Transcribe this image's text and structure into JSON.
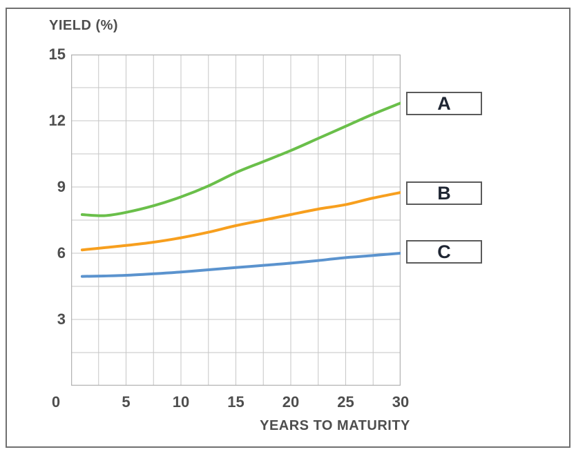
{
  "figure": {
    "y_axis_title": "YIELD (%)",
    "x_axis_title": "YEARS TO MATURITY"
  },
  "legend": {
    "items": [
      {
        "label": "A"
      },
      {
        "label": "B"
      },
      {
        "label": "C"
      }
    ]
  },
  "colors": {
    "curve_a": "#6abf4a",
    "curve_b": "#f79f1e",
    "curve_c": "#5b93ce",
    "gridline": "#c6c6c6",
    "plot_border": "#b3b3b3",
    "text": "#4e4e4e",
    "frame_border": "#6f6f6f",
    "legend_letter": "#1f2633"
  },
  "chart_data": {
    "type": "line",
    "title": "",
    "ylabel": "YIELD (%)",
    "xlabel": "YEARS TO MATURITY",
    "x": [
      1,
      3,
      5,
      7.5,
      10,
      12.5,
      15,
      17.5,
      20,
      22.5,
      25,
      27.5,
      30
    ],
    "series": [
      {
        "name": "A",
        "color": "#6abf4a",
        "values": [
          7.75,
          7.7,
          7.85,
          8.15,
          8.55,
          9.05,
          9.65,
          10.15,
          10.65,
          11.2,
          11.75,
          12.3,
          12.8
        ]
      },
      {
        "name": "B",
        "color": "#f79f1e",
        "values": [
          6.15,
          6.25,
          6.35,
          6.5,
          6.7,
          6.95,
          7.25,
          7.5,
          7.75,
          8.0,
          8.2,
          8.5,
          8.75
        ]
      },
      {
        "name": "C",
        "color": "#5b93ce",
        "values": [
          4.95,
          4.97,
          5.0,
          5.07,
          5.15,
          5.25,
          5.35,
          5.45,
          5.55,
          5.67,
          5.8,
          5.9,
          6.0
        ]
      }
    ],
    "xlim": [
      0,
      30
    ],
    "ylim": [
      0,
      15
    ],
    "x_ticks": [
      0,
      5,
      10,
      15,
      20,
      25,
      30
    ],
    "y_ticks": [
      15,
      12,
      9,
      6,
      3
    ],
    "x_grid_step": 2.5,
    "y_grid_step": 1.5,
    "grid": true,
    "legend_position": "right boxed labels"
  }
}
